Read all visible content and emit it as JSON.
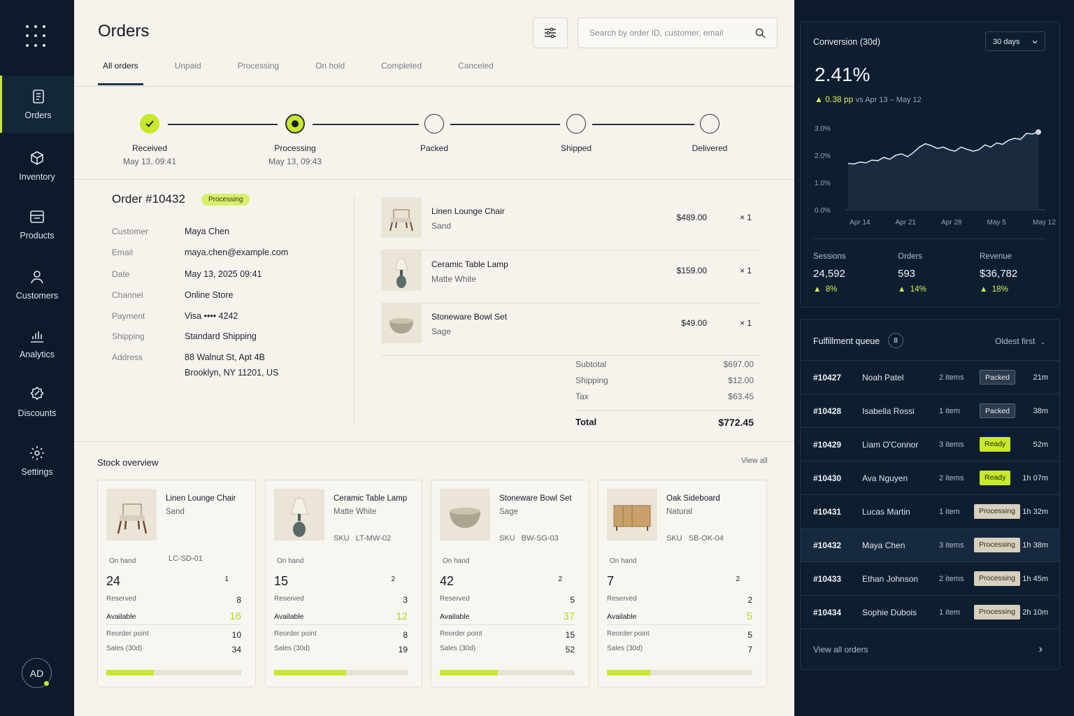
{
  "nav": {
    "items": [
      {
        "label": "Orders",
        "icon": "orders-icon"
      },
      {
        "label": "Inventory",
        "icon": "box-icon"
      },
      {
        "label": "Products",
        "icon": "products-icon"
      },
      {
        "label": "Customers",
        "icon": "user-icon"
      },
      {
        "label": "Analytics",
        "icon": "bar-chart-icon"
      },
      {
        "label": "Discounts",
        "icon": "discount-icon"
      },
      {
        "label": "Settings",
        "icon": "gear-icon"
      }
    ],
    "avatar": "AD",
    "accent": "#c8e82a"
  },
  "header": {
    "title": "Orders",
    "search_placeholder": "Search by order ID, customer, email"
  },
  "tabs": [
    "All orders",
    "Unpaid",
    "Processing",
    "On hold",
    "Completed",
    "Canceled"
  ],
  "progress": [
    {
      "label": "Received",
      "time": "May 13, 09:41",
      "state": "done"
    },
    {
      "label": "Processing",
      "time": "May 13, 09:43",
      "state": "current"
    },
    {
      "label": "Packed",
      "time": "",
      "state": "pending"
    },
    {
      "label": "Shipped",
      "time": "",
      "state": "pending"
    },
    {
      "label": "Delivered",
      "time": "",
      "state": "pending"
    }
  ],
  "order": {
    "title": "Order #10432",
    "status": "Processing",
    "details": [
      {
        "key": "Customer",
        "value": "Maya Chen"
      },
      {
        "key": "Email",
        "value": "maya.chen@example.com"
      },
      {
        "key": "Date",
        "value": "May 13, 2025 09:41"
      },
      {
        "key": "Channel",
        "value": "Online Store"
      },
      {
        "key": "Payment",
        "value": "Visa •••• 4242"
      },
      {
        "key": "Shipping",
        "value": "Standard Shipping"
      },
      {
        "key": "Address",
        "value": "88 Walnut St, Apt 4B",
        "value2": "Brooklyn, NY 11201, US"
      }
    ],
    "items": [
      {
        "name": "Linen Lounge Chair",
        "variant": "Sand",
        "price": "$489.00",
        "qty": "× 1"
      },
      {
        "name": "Ceramic Table Lamp",
        "variant": "Matte White",
        "price": "$159.00",
        "qty": "× 1"
      },
      {
        "name": "Stoneware Bowl Set",
        "variant": "Sage",
        "price": "$49.00",
        "qty": "× 1"
      }
    ],
    "totals": {
      "subtotal_label": "Subtotal",
      "subtotal": "$697.00",
      "shipping_label": "Shipping",
      "shipping": "$12.00",
      "tax_label": "Tax",
      "tax": "$63.45",
      "total_label": "Total",
      "total": "$772.45"
    }
  },
  "stock": {
    "title": "Stock overview",
    "view_all": "View all",
    "labels": {
      "on_hand": "On hand",
      "reserved": "Reserved",
      "available": "Available",
      "reorder": "Reorder point",
      "sales": "Sales (30d)"
    },
    "cards": [
      {
        "name": "Linen Lounge Chair",
        "variant": "Sand",
        "sku_label": "",
        "sku": "LC-SD-01",
        "on_hand": "24",
        "small": "1",
        "reserved": "8",
        "available": "16",
        "reorder": "10",
        "sales": "34",
        "fill": 0.35
      },
      {
        "name": "Ceramic Table Lamp",
        "variant": "Matte White",
        "sku_label": "SKU",
        "sku": "LT-MW-02",
        "on_hand": "15",
        "small": "2",
        "reserved": "3",
        "available": "12",
        "reorder": "8",
        "sales": "19",
        "fill": 0.54
      },
      {
        "name": "Stoneware Bowl Set",
        "variant": "Sage",
        "sku_label": "SKU",
        "sku": "BW-SG-03",
        "on_hand": "42",
        "small": "2",
        "reserved": "5",
        "available": "37",
        "reorder": "15",
        "sales": "52",
        "fill": 0.43
      },
      {
        "name": "Oak Sideboard",
        "variant": "Natural",
        "sku_label": "SKU",
        "sku": "SB-OK-04",
        "on_hand": "7",
        "small": "2",
        "reserved": "2",
        "available": "5",
        "reorder": "5",
        "sales": "7",
        "fill": 0.3
      }
    ]
  },
  "conversion": {
    "title": "Conversion (30d)",
    "range": "30 days",
    "value": "2.41%",
    "delta": "0.38 pp",
    "delta_sub": "vs Apr 13 – May 12",
    "kpis": [
      {
        "label": "Sessions",
        "value": "24,592",
        "delta": "8%"
      },
      {
        "label": "Orders",
        "value": "593",
        "delta": "14%"
      },
      {
        "label": "Revenue",
        "value": "$36,782",
        "delta": "18%"
      }
    ]
  },
  "chart_data": {
    "type": "area",
    "x_ticks": [
      "Apr 14",
      "Apr 21",
      "Apr 28",
      "May 5",
      "May 12"
    ],
    "y_ticks": [
      "3.0%",
      "2.0%",
      "1.0%",
      "0.0%"
    ],
    "ylim": [
      0,
      3.0
    ],
    "values": [
      1.7,
      1.68,
      1.75,
      1.72,
      1.82,
      1.8,
      1.92,
      1.85,
      2.0,
      2.05,
      1.95,
      2.1,
      2.3,
      2.42,
      2.35,
      2.25,
      2.3,
      2.2,
      2.15,
      2.3,
      2.22,
      2.15,
      2.2,
      2.38,
      2.3,
      2.45,
      2.4,
      2.55,
      2.62,
      2.58,
      2.8,
      2.78,
      2.85
    ]
  },
  "queue": {
    "title": "Fulfillment queue",
    "count": "8",
    "sort": "Oldest first",
    "footer": "View all orders",
    "rows": [
      {
        "id": "#10427",
        "customer": "Noah Patel",
        "items": "2 items",
        "status": "Packed",
        "cls": "packed",
        "age": "21m"
      },
      {
        "id": "#10428",
        "customer": "Isabella Rossi",
        "items": "1 item",
        "status": "Packed",
        "cls": "packed",
        "age": "38m"
      },
      {
        "id": "#10429",
        "customer": "Liam O'Connor",
        "items": "3 items",
        "status": "Ready",
        "cls": "ready",
        "age": "52m"
      },
      {
        "id": "#10430",
        "customer": "Ava Nguyen",
        "items": "2 items",
        "status": "Ready",
        "cls": "ready",
        "age": "1h 07m"
      },
      {
        "id": "#10431",
        "customer": "Lucas Martin",
        "items": "1 item",
        "status": "Processing",
        "cls": "processing",
        "age": "1h 32m"
      },
      {
        "id": "#10432",
        "customer": "Maya Chen",
        "items": "3 items",
        "status": "Processing",
        "cls": "processing",
        "age": "1h 38m",
        "selected": true
      },
      {
        "id": "#10433",
        "customer": "Ethan Johnson",
        "items": "2 items",
        "status": "Processing",
        "cls": "processing",
        "age": "1h 45m"
      },
      {
        "id": "#10434",
        "customer": "Sophie Dubois",
        "items": "1 item",
        "status": "Processing",
        "cls": "processing",
        "age": "2h 10m"
      }
    ]
  }
}
